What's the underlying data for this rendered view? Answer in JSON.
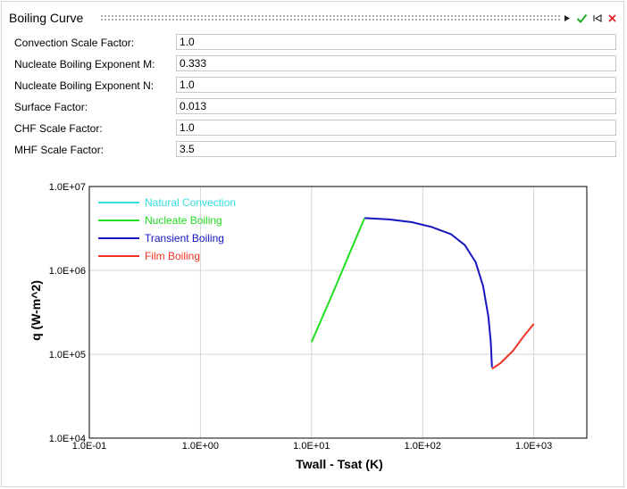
{
  "panel": {
    "title": "Boiling Curve"
  },
  "fields": [
    {
      "label": "Convection Scale Factor:",
      "value": "1.0"
    },
    {
      "label": "Nucleate Boiling Exponent M:",
      "value": "0.333"
    },
    {
      "label": "Nucleate Boiling Exponent N:",
      "value": "1.0"
    },
    {
      "label": "Surface Factor:",
      "value": "0.013"
    },
    {
      "label": "CHF Scale Factor:",
      "value": "1.0"
    },
    {
      "label": "MHF Scale Factor:",
      "value": "3.5"
    }
  ],
  "toolbar": {
    "icons": [
      "play-icon",
      "check-icon",
      "reset-icon",
      "close-icon"
    ],
    "colors": {
      "check": "#22aa22",
      "close": "#dd2222",
      "play": "#222222"
    }
  },
  "chart_data": {
    "type": "line",
    "xlabel": "Twall - Tsat (K)",
    "ylabel": "q (W-m^2)",
    "x_scale": "log",
    "y_scale": "log",
    "xlim": [
      0.1,
      3000
    ],
    "ylim": [
      10000,
      10000000
    ],
    "x_ticks": [
      0.1,
      1,
      10,
      100,
      1000
    ],
    "x_tick_labels": [
      "1.0E-01",
      "1.0E+00",
      "1.0E+01",
      "1.0E+02",
      "1.0E+03"
    ],
    "y_ticks": [
      10000,
      100000,
      1000000,
      10000000
    ],
    "y_tick_labels": [
      "1.0E+04",
      "1.0E+05",
      "1.0E+06",
      "1.0E+07"
    ],
    "grid": true,
    "legend_position": "top-left",
    "series": [
      {
        "name": "Natural Convection",
        "color": "#33e0e0",
        "points": []
      },
      {
        "name": "Nucleate Boiling",
        "color": "#22dd22",
        "points": [
          [
            10,
            140000
          ],
          [
            15,
            480000
          ],
          [
            22,
            1600000
          ],
          [
            30,
            4200000
          ]
        ]
      },
      {
        "name": "Transient Boiling",
        "color": "#1515c0",
        "points": [
          [
            30,
            4200000
          ],
          [
            50,
            4050000
          ],
          [
            80,
            3750000
          ],
          [
            120,
            3300000
          ],
          [
            180,
            2700000
          ],
          [
            240,
            2000000
          ],
          [
            300,
            1250000
          ],
          [
            350,
            650000
          ],
          [
            390,
            280000
          ],
          [
            410,
            140000
          ],
          [
            420,
            70000
          ]
        ]
      },
      {
        "name": "Film Boiling",
        "color": "#ee3322",
        "points": [
          [
            420,
            67000
          ],
          [
            500,
            78000
          ],
          [
            650,
            110000
          ],
          [
            800,
            160000
          ],
          [
            1000,
            230000
          ]
        ]
      }
    ]
  }
}
